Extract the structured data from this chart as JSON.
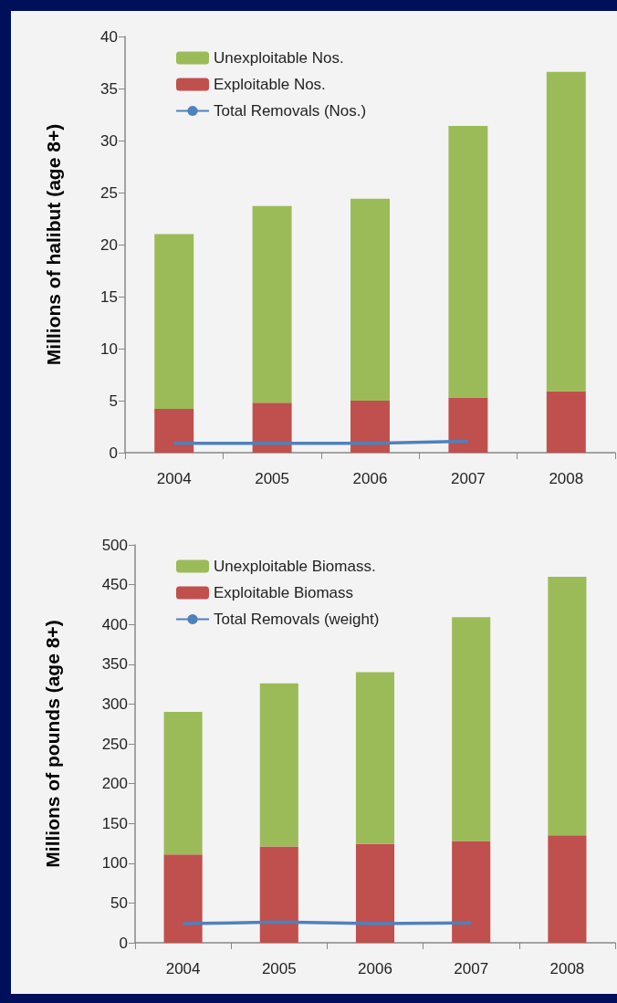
{
  "chart_data": [
    {
      "type": "bar",
      "ylabel": "Millions of halibut (age 8+)",
      "categories": [
        "2004",
        "2005",
        "2006",
        "2007",
        "2008"
      ],
      "stacked": true,
      "ylim": [
        0,
        40
      ],
      "yticks": [
        0,
        5,
        10,
        15,
        20,
        25,
        30,
        35,
        40
      ],
      "grid": false,
      "legend": "top left",
      "series": [
        {
          "name": "Exploitable Nos.",
          "color": "#c0504d",
          "values": [
            4.2,
            4.8,
            5.0,
            5.3,
            5.9
          ]
        },
        {
          "name": "Unexploitable Nos.",
          "color": "#9bbb59",
          "values": [
            16.8,
            18.9,
            19.4,
            26.1,
            30.7
          ]
        },
        {
          "name": "Total Removals (Nos.)",
          "type": "line",
          "color": "#4f81bd",
          "values": [
            0.9,
            0.9,
            0.9,
            1.1,
            null
          ]
        }
      ]
    },
    {
      "type": "bar",
      "ylabel": "Millions of pounds (age 8+)",
      "categories": [
        "2004",
        "2005",
        "2006",
        "2007",
        "2008"
      ],
      "stacked": true,
      "ylim": [
        0,
        500
      ],
      "yticks": [
        0,
        50,
        100,
        150,
        200,
        250,
        300,
        350,
        400,
        450,
        500
      ],
      "grid": false,
      "legend": "top left",
      "series": [
        {
          "name": "Exploitable Biomass",
          "color": "#c0504d",
          "values": [
            111,
            121,
            124,
            128,
            135
          ]
        },
        {
          "name": "Unexploitable Biomass.",
          "color": "#9bbb59",
          "values": [
            179,
            205,
            216,
            281,
            325
          ]
        },
        {
          "name": "Total Removals (weight)",
          "type": "line",
          "color": "#4f81bd",
          "values": [
            24,
            26,
            24,
            25,
            null
          ]
        }
      ]
    }
  ]
}
